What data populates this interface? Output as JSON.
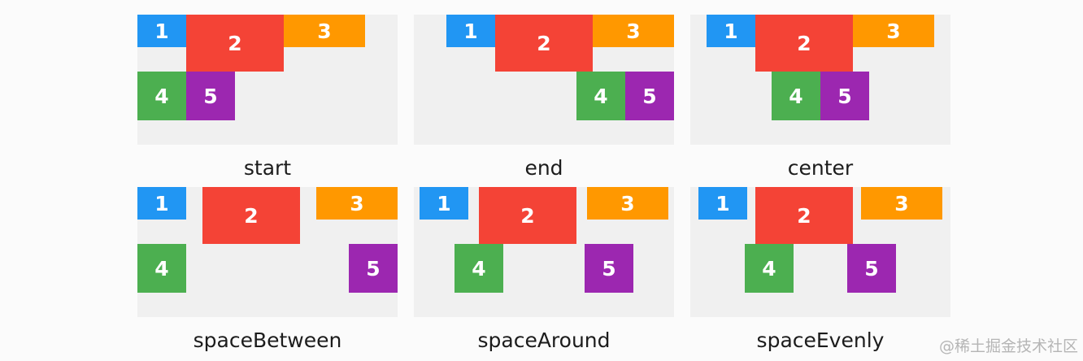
{
  "colors": {
    "box1": "#2196f3",
    "box2": "#f44336",
    "box3": "#ff9800",
    "box4": "#4caf50",
    "box5": "#9c27b0",
    "panel_bg": "#f0f0f0"
  },
  "panels": [
    {
      "caption": "start",
      "boxes": [
        "1",
        "2",
        "3",
        "4",
        "5"
      ]
    },
    {
      "caption": "end",
      "boxes": [
        "1",
        "2",
        "3",
        "4",
        "5"
      ]
    },
    {
      "caption": "center",
      "boxes": [
        "1",
        "2",
        "3",
        "4",
        "5"
      ]
    },
    {
      "caption": "spaceBetween",
      "boxes": [
        "1",
        "2",
        "3",
        "4",
        "5"
      ]
    },
    {
      "caption": "spaceAround",
      "boxes": [
        "1",
        "2",
        "3",
        "4",
        "5"
      ]
    },
    {
      "caption": "spaceEvenly",
      "boxes": [
        "1",
        "2",
        "3",
        "4",
        "5"
      ]
    }
  ],
  "watermark": "@稀土掘金技术社区"
}
